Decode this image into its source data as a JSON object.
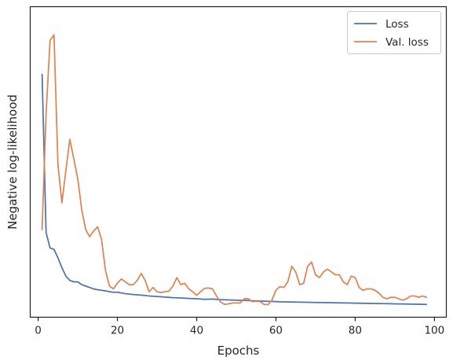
{
  "chart_data": {
    "type": "line",
    "title": "",
    "xlabel": "Epochs",
    "ylabel": "Negative log-likelihood",
    "xlim": [
      -2,
      103
    ],
    "ylim": [
      0,
      100
    ],
    "y_tick_labels_shown": false,
    "x_ticks": [
      0,
      20,
      40,
      60,
      80,
      100
    ],
    "grid": false,
    "legend": "top-right",
    "series": [
      {
        "name": "Loss",
        "color": "#4c72b0",
        "x": [
          1,
          2,
          3,
          4,
          5,
          6,
          7,
          8,
          9,
          10,
          11,
          12,
          13,
          14,
          15,
          16,
          17,
          18,
          19,
          20,
          22,
          24,
          26,
          28,
          30,
          32,
          34,
          36,
          38,
          40,
          42,
          44,
          46,
          48,
          50,
          52,
          54,
          56,
          58,
          60,
          62,
          64,
          66,
          68,
          70,
          72,
          74,
          76,
          78,
          80,
          82,
          84,
          86,
          88,
          90,
          92,
          94,
          96,
          98
        ],
        "values": [
          82,
          26,
          20.5,
          20,
          17,
          13.5,
          10.5,
          9,
          8.5,
          8.5,
          7.5,
          7,
          6.5,
          6,
          5.7,
          5.5,
          5.3,
          5,
          4.8,
          4.8,
          4.3,
          4,
          3.8,
          3.5,
          3.3,
          3.1,
          2.9,
          2.8,
          2.6,
          2.5,
          2.3,
          2.4,
          2.2,
          2.1,
          2,
          1.9,
          1.8,
          1.7,
          1.6,
          1.5,
          1.4,
          1.35,
          1.3,
          1.25,
          1.2,
          1.15,
          1.1,
          1.05,
          1,
          0.95,
          0.9,
          0.85,
          0.8,
          0.75,
          0.7,
          0.65,
          0.6,
          0.55,
          0.5
        ]
      },
      {
        "name": "Val. loss",
        "color": "#dd8452",
        "x": [
          1,
          2,
          3,
          4,
          5,
          6,
          7,
          8,
          9,
          10,
          11,
          12,
          13,
          14,
          15,
          16,
          17,
          18,
          19,
          20,
          21,
          22,
          23,
          24,
          25,
          26,
          27,
          28,
          29,
          30,
          31,
          32,
          33,
          34,
          35,
          36,
          37,
          38,
          39,
          40,
          41,
          42,
          43,
          44,
          45,
          46,
          47,
          48,
          49,
          50,
          51,
          52,
          53,
          54,
          55,
          56,
          57,
          58,
          59,
          60,
          61,
          62,
          63,
          64,
          65,
          66,
          67,
          68,
          69,
          70,
          71,
          72,
          73,
          74,
          75,
          76,
          77,
          78,
          79,
          80,
          81,
          82,
          83,
          84,
          85,
          86,
          87,
          88,
          89,
          90,
          91,
          92,
          93,
          94,
          95,
          96,
          97,
          98
        ],
        "values": [
          27,
          68,
          94,
          96,
          50,
          36.5,
          48,
          59,
          52,
          45,
          34,
          27,
          24.5,
          26.5,
          28,
          23.5,
          12.5,
          7,
          6,
          8,
          9.5,
          8.5,
          7.5,
          7.5,
          9,
          11.5,
          9,
          5,
          6.5,
          5,
          4.7,
          5,
          5.2,
          7,
          10,
          7.5,
          8,
          6,
          5,
          3.7,
          5,
          6.2,
          6.3,
          6,
          3.5,
          1.4,
          0.5,
          0.7,
          1,
          1,
          1,
          2.5,
          2.5,
          1.5,
          1.6,
          1.5,
          0.5,
          0.4,
          2,
          5.5,
          6.8,
          6.5,
          8.5,
          14,
          12,
          7.5,
          8,
          14,
          15.5,
          11,
          10,
          12,
          13,
          12,
          11,
          11,
          8.5,
          7.5,
          10.5,
          10,
          6.5,
          5.5,
          6,
          6,
          5.5,
          4.5,
          3,
          2.5,
          3,
          3,
          2.5,
          2,
          2.5,
          3.5,
          3.5,
          3,
          3.5,
          3
        ]
      }
    ]
  }
}
